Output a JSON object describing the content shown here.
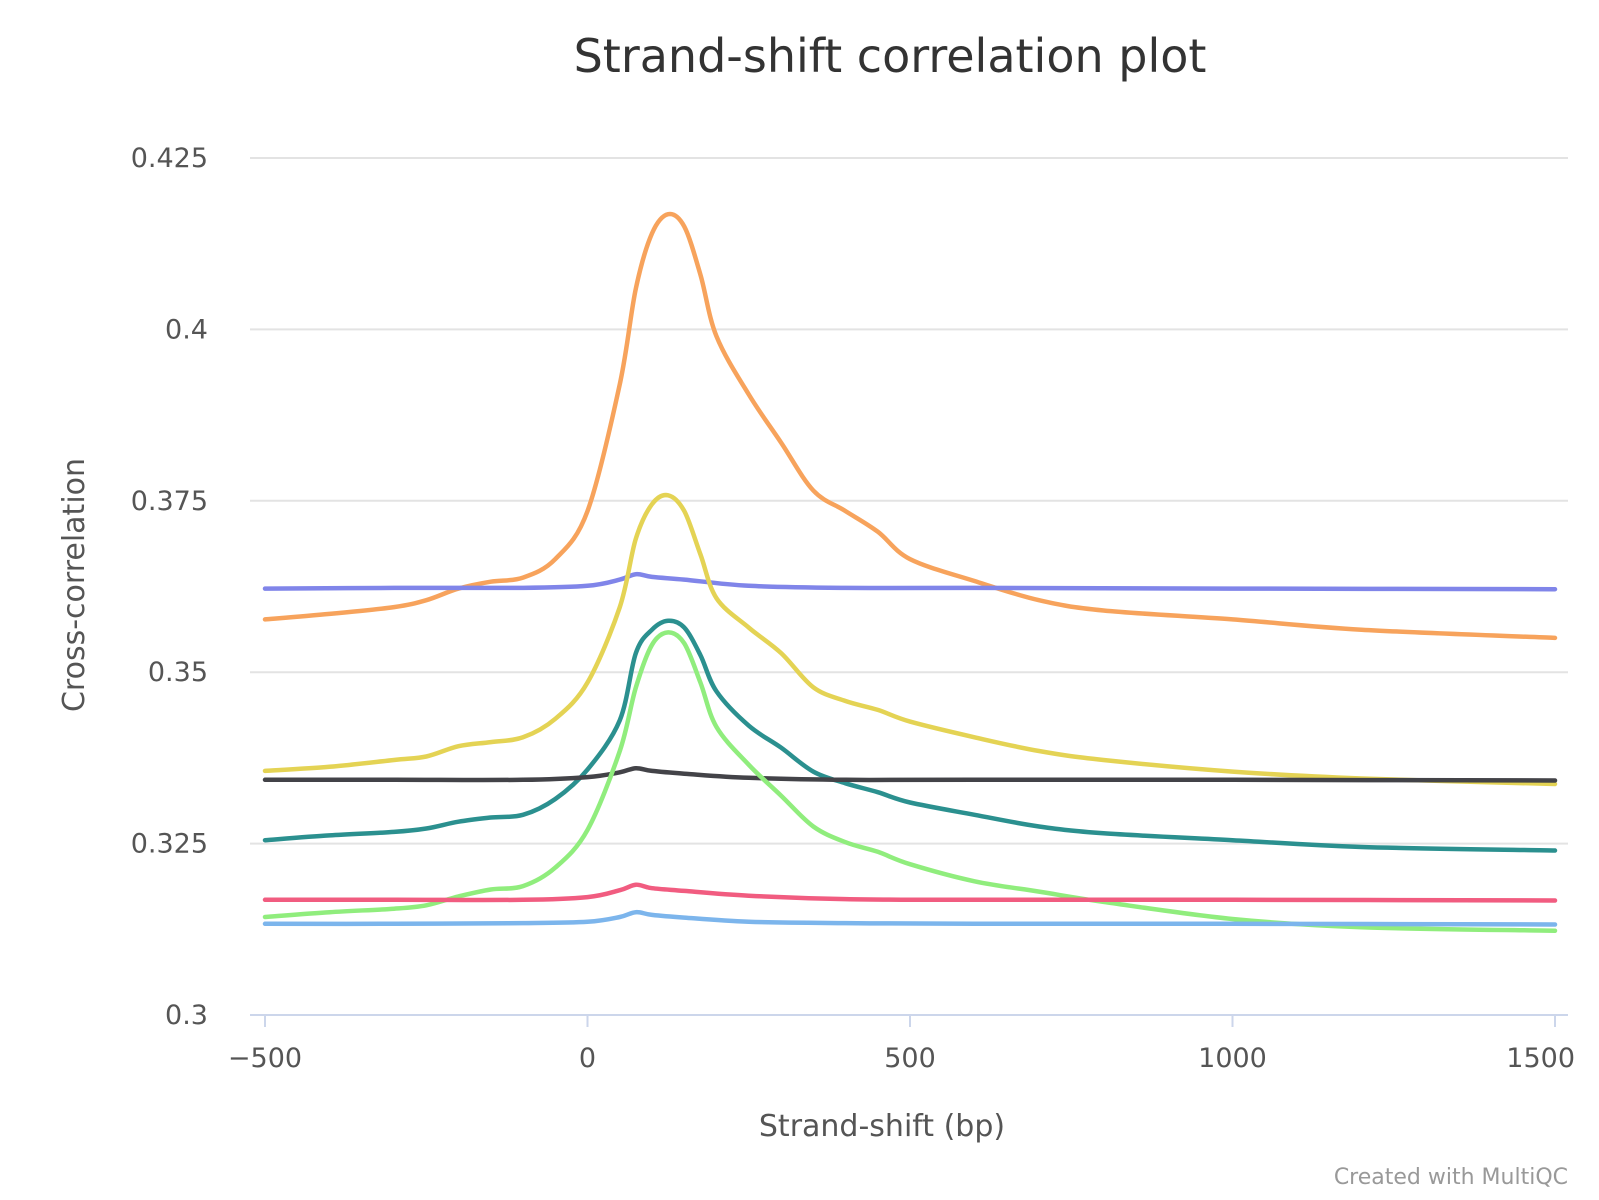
{
  "chart_data": {
    "type": "line",
    "title": "Strand-shift correlation plot",
    "xlabel": "Strand-shift (bp)",
    "ylabel": "Cross-correlation",
    "credits": "Created with MultiQC",
    "xlim": [
      -500,
      1500
    ],
    "ylim": [
      0.3,
      0.425
    ],
    "x_ticks": [
      -500,
      0,
      500,
      1000,
      1500
    ],
    "x_tick_labels": [
      "−500",
      "0",
      "500",
      "1000",
      "1500"
    ],
    "y_ticks": [
      0.3,
      0.325,
      0.35,
      0.375,
      0.4,
      0.425
    ],
    "y_tick_labels": [
      "0.3",
      "0.325",
      "0.35",
      "0.375",
      "0.4",
      "0.425"
    ],
    "grid": true,
    "series": [
      {
        "name": "orange",
        "color": "#f7a35c",
        "x": [
          -500,
          -400,
          -300,
          -250,
          -200,
          -150,
          -100,
          -50,
          0,
          50,
          75,
          100,
          125,
          150,
          175,
          200,
          250,
          300,
          350,
          400,
          450,
          500,
          600,
          700,
          800,
          1000,
          1200,
          1500
        ],
        "y": [
          0.3577,
          0.3585,
          0.3595,
          0.3605,
          0.3622,
          0.3632,
          0.3638,
          0.3665,
          0.3735,
          0.392,
          0.406,
          0.414,
          0.4168,
          0.415,
          0.408,
          0.399,
          0.3905,
          0.3835,
          0.3765,
          0.3735,
          0.3705,
          0.3665,
          0.3633,
          0.3605,
          0.359,
          0.3577,
          0.3562,
          0.355
        ]
      },
      {
        "name": "purple",
        "color": "#8085e9",
        "x": [
          -500,
          -300,
          -100,
          0,
          50,
          75,
          100,
          150,
          250,
          400,
          600,
          1000,
          1500
        ],
        "y": [
          0.3622,
          0.3623,
          0.3623,
          0.3626,
          0.3635,
          0.3643,
          0.3639,
          0.3635,
          0.3626,
          0.3623,
          0.3623,
          0.3622,
          0.3621
        ]
      },
      {
        "name": "yellow",
        "color": "#e4d354",
        "x": [
          -500,
          -400,
          -300,
          -250,
          -200,
          -150,
          -100,
          -50,
          0,
          50,
          75,
          100,
          125,
          150,
          175,
          200,
          250,
          300,
          350,
          400,
          450,
          500,
          600,
          700,
          800,
          1000,
          1200,
          1500
        ],
        "y": [
          0.3356,
          0.3362,
          0.3372,
          0.3377,
          0.3392,
          0.3398,
          0.3405,
          0.3432,
          0.3485,
          0.3595,
          0.3695,
          0.3745,
          0.3758,
          0.3735,
          0.3672,
          0.3608,
          0.3565,
          0.3528,
          0.3478,
          0.3458,
          0.3445,
          0.3428,
          0.3405,
          0.3385,
          0.3372,
          0.3355,
          0.3345,
          0.3337
        ]
      },
      {
        "name": "teal",
        "color": "#2b908f",
        "x": [
          -500,
          -400,
          -300,
          -250,
          -200,
          -150,
          -100,
          -50,
          0,
          50,
          75,
          100,
          125,
          150,
          175,
          200,
          250,
          300,
          350,
          400,
          450,
          500,
          600,
          700,
          800,
          1000,
          1200,
          1500
        ],
        "y": [
          0.3255,
          0.3262,
          0.3267,
          0.3272,
          0.3282,
          0.3288,
          0.3292,
          0.3315,
          0.3358,
          0.343,
          0.3528,
          0.3562,
          0.3575,
          0.3565,
          0.3525,
          0.3472,
          0.3422,
          0.339,
          0.3355,
          0.3338,
          0.3325,
          0.331,
          0.3292,
          0.3275,
          0.3265,
          0.3255,
          0.3245,
          0.324
        ]
      },
      {
        "name": "black",
        "color": "#434348",
        "x": [
          -500,
          -300,
          -100,
          0,
          50,
          75,
          100,
          150,
          250,
          400,
          600,
          1000,
          1500
        ],
        "y": [
          0.3343,
          0.3343,
          0.3343,
          0.3347,
          0.3354,
          0.336,
          0.3356,
          0.3352,
          0.3346,
          0.3343,
          0.3343,
          0.3343,
          0.3342
        ]
      },
      {
        "name": "green",
        "color": "#90ed7d",
        "x": [
          -500,
          -400,
          -300,
          -250,
          -200,
          -150,
          -100,
          -50,
          0,
          50,
          75,
          100,
          125,
          150,
          175,
          200,
          250,
          300,
          350,
          400,
          450,
          500,
          600,
          700,
          800,
          1000,
          1200,
          1500
        ],
        "y": [
          0.3143,
          0.315,
          0.3155,
          0.316,
          0.3173,
          0.3183,
          0.3188,
          0.3215,
          0.327,
          0.3385,
          0.3478,
          0.354,
          0.3558,
          0.3542,
          0.3485,
          0.342,
          0.3365,
          0.332,
          0.3275,
          0.3252,
          0.3238,
          0.322,
          0.3195,
          0.318,
          0.3165,
          0.314,
          0.3128,
          0.3123
        ]
      },
      {
        "name": "pink",
        "color": "#f15c80",
        "x": [
          -500,
          -300,
          -100,
          0,
          50,
          75,
          100,
          150,
          250,
          400,
          600,
          1000,
          1500
        ],
        "y": [
          0.3168,
          0.3168,
          0.3168,
          0.3172,
          0.3182,
          0.319,
          0.3185,
          0.3181,
          0.3174,
          0.3169,
          0.3168,
          0.3168,
          0.3167
        ]
      },
      {
        "name": "lightblue",
        "color": "#7cb5ec",
        "x": [
          -500,
          -300,
          -100,
          0,
          50,
          75,
          100,
          150,
          250,
          400,
          600,
          1000,
          1500
        ],
        "y": [
          0.3133,
          0.3133,
          0.3134,
          0.3136,
          0.3143,
          0.315,
          0.3146,
          0.3142,
          0.3136,
          0.3134,
          0.3133,
          0.3133,
          0.3132
        ]
      }
    ]
  }
}
